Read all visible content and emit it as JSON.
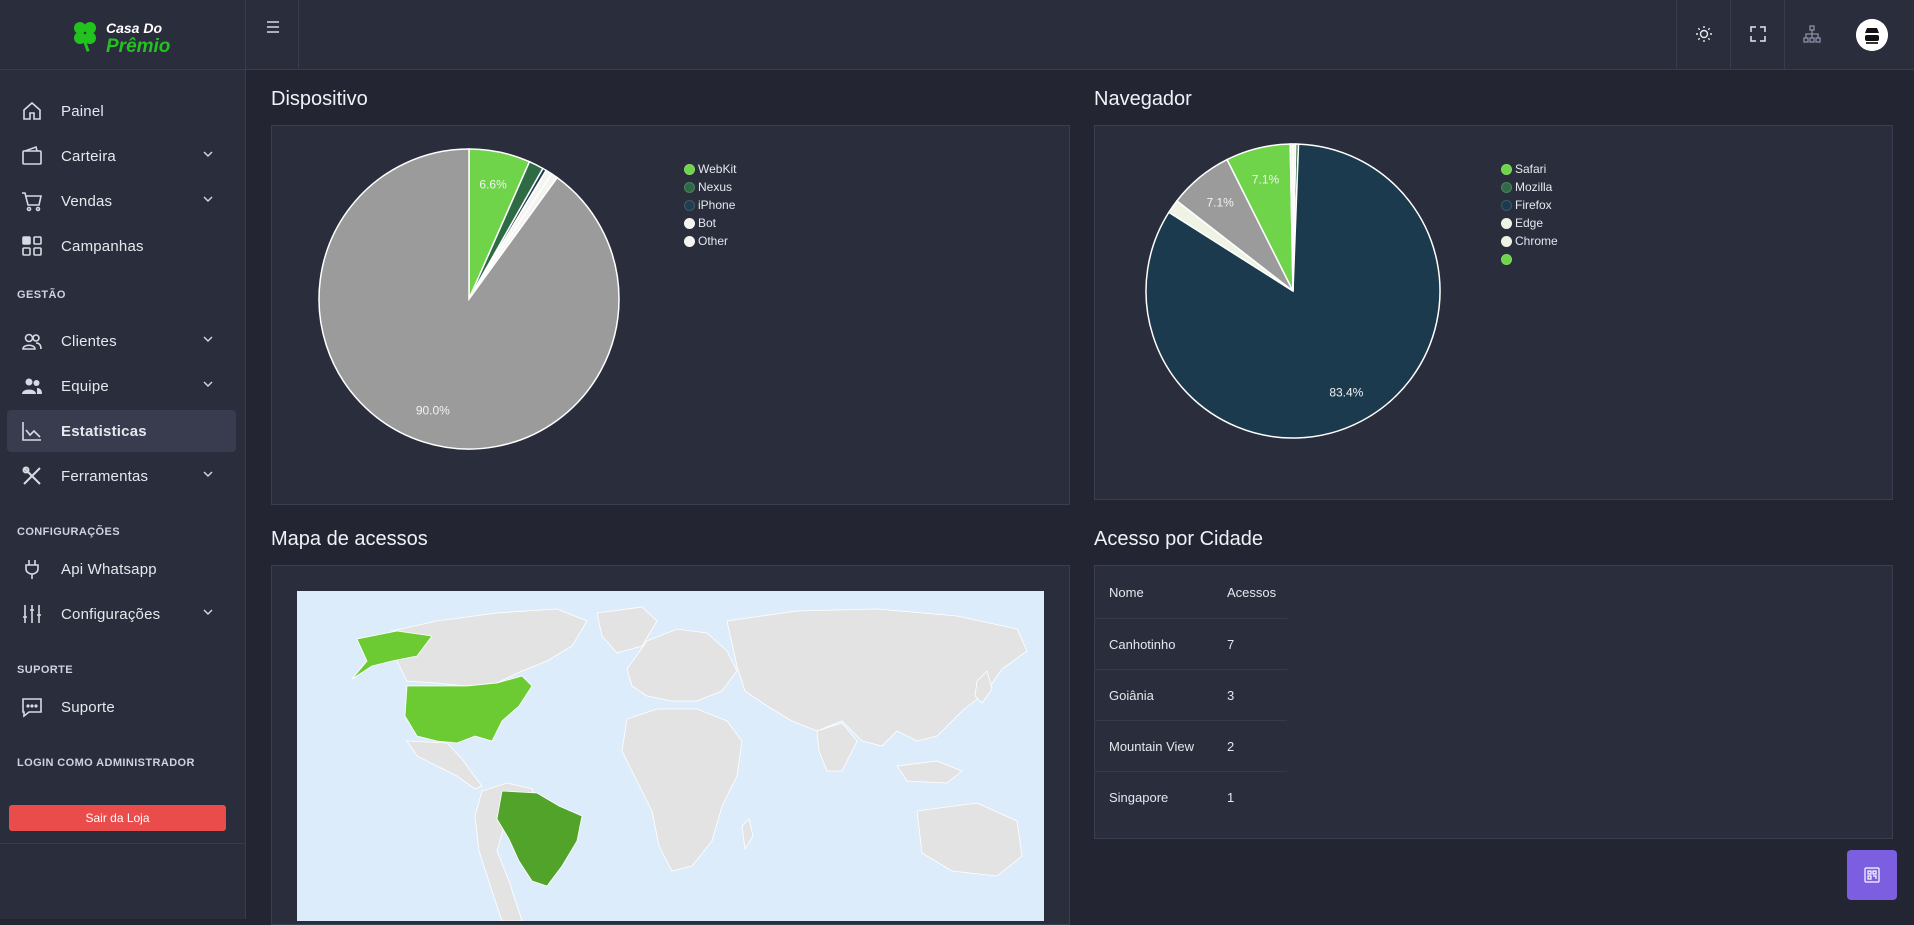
{
  "brand": {
    "line1": "Casa Do",
    "line2": "Prêmio",
    "color": "#22c21f"
  },
  "sidebar": {
    "items_top": [
      {
        "label": "Painel",
        "icon": "home-icon",
        "chevron": false
      },
      {
        "label": "Carteira",
        "icon": "wallet-icon",
        "chevron": true
      },
      {
        "label": "Vendas",
        "icon": "cart-icon",
        "chevron": true
      },
      {
        "label": "Campanhas",
        "icon": "grid-icon",
        "chevron": false
      }
    ],
    "section_gestao": "GESTÃO",
    "items_gestao": [
      {
        "label": "Clientes",
        "icon": "users-icon",
        "chevron": true
      },
      {
        "label": "Equipe",
        "icon": "team-icon",
        "chevron": true
      },
      {
        "label": "Estatisticas",
        "icon": "chart-line-icon",
        "chevron": false,
        "active": true
      },
      {
        "label": "Ferramentas",
        "icon": "tools-icon",
        "chevron": true
      }
    ],
    "section_config": "CONFIGURAÇÕES",
    "items_config": [
      {
        "label": "Api Whatsapp",
        "icon": "plug-icon",
        "chevron": false
      },
      {
        "label": "Configurações",
        "icon": "sliders-icon",
        "chevron": true
      }
    ],
    "section_suporte": "SUPORTE",
    "items_suporte": [
      {
        "label": "Suporte",
        "icon": "chat-icon",
        "chevron": false
      }
    ],
    "section_admin": "LOGIN COMO ADMINISTRADOR",
    "logout_label": "Sair da Loja"
  },
  "topbar": {
    "menu_icon": "hamburger-icon",
    "icons": [
      "sun-icon",
      "fullscreen-icon",
      "sitemap-icon"
    ],
    "avatar": "avatar"
  },
  "dispositivo": {
    "title": "Dispositivo",
    "chart_data": {
      "type": "pie",
      "labels": [
        "WebKit",
        "Nexus",
        "iPhone",
        "Bot",
        "Other",
        ""
      ],
      "values": [
        6.6,
        1.6,
        0.4,
        0.7,
        0.7,
        90.0
      ],
      "colors": [
        "#6fd44a",
        "#2e6b45",
        "#1f3d4f",
        "#f4f5f0",
        "#f4f5f0",
        "#9b9b9b"
      ],
      "data_labels": [
        "6.6%",
        "",
        "",
        "",
        "",
        "90.0%"
      ],
      "legend": [
        "WebKit",
        "Nexus",
        "iPhone",
        "Bot",
        "Other"
      ],
      "legend_colors": [
        "#6fd44a",
        "#2e6b45",
        "#1f3d4f",
        "#f4f5f0",
        "#f4f5f0"
      ]
    }
  },
  "navegador": {
    "title": "Navegador",
    "chart_data": {
      "type": "pie",
      "labels": [
        "Safari",
        "Mozilla",
        "Firefox",
        "Edge",
        "Chrome",
        "",
        ""
      ],
      "values": [
        0.3,
        0.3,
        83.4,
        1.5,
        7.1,
        7.1,
        0.3
      ],
      "colors": [
        "#eef3e4",
        "#2e6b45",
        "#1b3a4d",
        "#eef3e4",
        "#9b9b9b",
        "#6fd44a",
        "#eef3e4"
      ],
      "data_labels": [
        "",
        "",
        "83.4%",
        "",
        "7.1%",
        "7.1%",
        ""
      ],
      "legend": [
        "Safari",
        "Mozilla",
        "Firefox",
        "Edge",
        "Chrome",
        ""
      ],
      "legend_colors": [
        "#6fd44a",
        "#2e6b45",
        "#1b3a4d",
        "#eef3e4",
        "#eef3e4",
        "#6fd44a"
      ]
    }
  },
  "mapa": {
    "title": "Mapa de acessos",
    "ocean": "#ddecfb",
    "land": "#e3e3e3",
    "highlight": "#6ccb33",
    "highlight_dark": "#52a32a"
  },
  "cidade": {
    "title": "Acesso por Cidade",
    "headers": [
      "Nome",
      "Acessos"
    ],
    "rows": [
      {
        "nome": "Canhotinho",
        "acessos": "7"
      },
      {
        "nome": "Goiânia",
        "acessos": "3"
      },
      {
        "nome": "Mountain View",
        "acessos": "2"
      },
      {
        "nome": "Singapore",
        "acessos": "1"
      }
    ]
  },
  "float_button_icon": "qr-icon"
}
